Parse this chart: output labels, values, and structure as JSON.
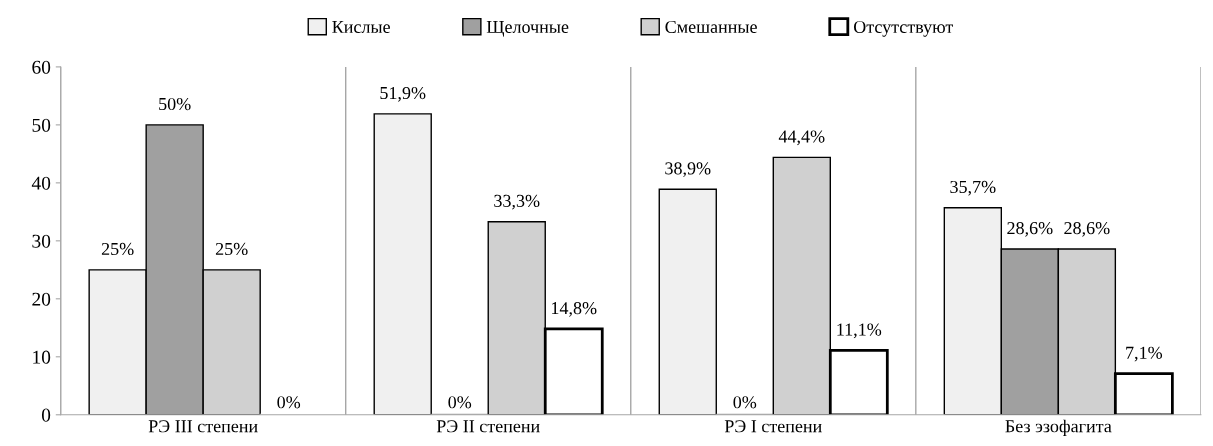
{
  "chart_data": {
    "type": "bar",
    "categories": [
      "РЭ III степени",
      "РЭ II степени",
      "РЭ I степени",
      "Без эзофагита"
    ],
    "series": [
      {
        "name": "Кислые",
        "color": "#f0f0f0",
        "values": [
          25,
          51.9,
          38.9,
          35.7
        ],
        "value_labels": [
          "25%",
          "51,9%",
          "38,9%",
          "35,7%"
        ]
      },
      {
        "name": "Щелочные",
        "color": "#a0a0a0",
        "values": [
          50,
          0,
          0,
          28.6
        ],
        "value_labels": [
          "50%",
          "0%",
          "0%",
          "28,6%"
        ]
      },
      {
        "name": "Смешанные",
        "color": "#d0d0d0",
        "values": [
          25,
          33.3,
          44.4,
          28.6
        ],
        "value_labels": [
          "25%",
          "33,3%",
          "44,4%",
          "28,6%"
        ]
      },
      {
        "name": "Отсутствуют",
        "color": "#ffffff",
        "values": [
          0,
          14.8,
          11.1,
          7.1
        ],
        "value_labels": [
          "0%",
          "14,8%",
          "11,1%",
          "7,1%"
        ]
      }
    ],
    "ylim": [
      0,
      60
    ],
    "yticks": [
      0,
      10,
      20,
      30,
      40,
      50,
      60
    ],
    "grid": "x",
    "legend": "top"
  }
}
